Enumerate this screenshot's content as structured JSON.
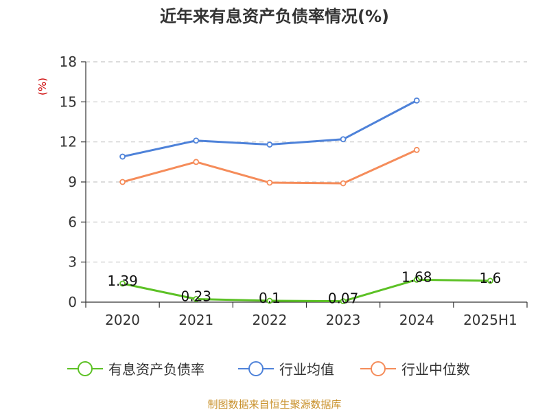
{
  "chart_data": {
    "type": "line",
    "title": "近年来有息资产负债率情况(%)",
    "ylabel": "(%)",
    "xlabel": "",
    "categories": [
      "2020",
      "2021",
      "2022",
      "2023",
      "2024",
      "2025H1"
    ],
    "ylim": [
      0,
      18
    ],
    "yticks": [
      0,
      3,
      6,
      9,
      12,
      15,
      18
    ],
    "grid": true,
    "legend_position": "bottom",
    "series": [
      {
        "name": "有息资产负债率",
        "color": "#5cc125",
        "values": [
          1.39,
          0.23,
          0.1,
          0.07,
          1.68,
          1.6
        ],
        "labels": [
          "1.39",
          "0.23",
          "0.1",
          "0.07",
          "1.68",
          "1.6"
        ],
        "show_labels": true
      },
      {
        "name": "行业均值",
        "color": "#4e82d9",
        "values": [
          10.9,
          12.1,
          11.8,
          12.2,
          15.1,
          null
        ],
        "show_labels": false
      },
      {
        "name": "行业中位数",
        "color": "#f58c5a",
        "values": [
          9.0,
          10.5,
          8.95,
          8.9,
          11.4,
          null
        ],
        "show_labels": false
      }
    ]
  },
  "source_text": "制图数据来自恒生聚源数据库"
}
